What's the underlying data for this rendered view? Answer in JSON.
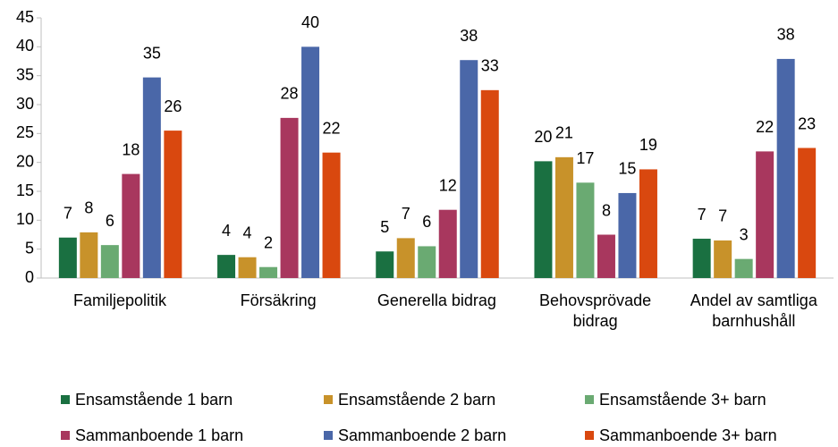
{
  "chart_data": {
    "type": "bar",
    "categories": [
      "Familjepolitik",
      "Försäkring",
      "Generella bidrag",
      "Behovsprövade bidrag",
      "Andel av samtliga barnhushåll"
    ],
    "series": [
      {
        "name": "Ensamstående 1 barn",
        "color": "#1a7041",
        "values": [
          7.0,
          4.0,
          4.6,
          20.2,
          6.8
        ],
        "value_labels": [
          "7",
          "4",
          "5",
          "20",
          "7"
        ]
      },
      {
        "name": "Ensamstående 2 barn",
        "color": "#c8922a",
        "values": [
          7.9,
          3.6,
          6.9,
          20.9,
          6.5
        ],
        "value_labels": [
          "8",
          "4",
          "7",
          "21",
          "7"
        ]
      },
      {
        "name": "Ensamstående 3+ barn",
        "color": "#6aaa72",
        "values": [
          5.7,
          1.9,
          5.5,
          16.5,
          3.3
        ],
        "value_labels": [
          "6",
          "2",
          "6",
          "17",
          "3"
        ]
      },
      {
        "name": "Sammanboende 1 barn",
        "color": "#a8375e",
        "values": [
          18.0,
          27.7,
          11.8,
          7.5,
          21.9
        ],
        "value_labels": [
          "18",
          "28",
          "12",
          "8",
          "22"
        ]
      },
      {
        "name": "Sammanboende 2 barn",
        "color": "#4a67a8",
        "values": [
          34.7,
          40.0,
          37.7,
          14.7,
          37.9
        ],
        "value_labels": [
          "35",
          "40",
          "38",
          "15",
          "38"
        ]
      },
      {
        "name": "Sammanboende 3+ barn",
        "color": "#d9480f",
        "values": [
          25.5,
          21.7,
          32.5,
          18.8,
          22.5
        ],
        "value_labels": [
          "26",
          "22",
          "33",
          "19",
          "23"
        ]
      }
    ],
    "ylim": [
      0,
      45
    ],
    "yticks": [
      0,
      5,
      10,
      15,
      20,
      25,
      30,
      35,
      40,
      45
    ],
    "grid": false
  }
}
